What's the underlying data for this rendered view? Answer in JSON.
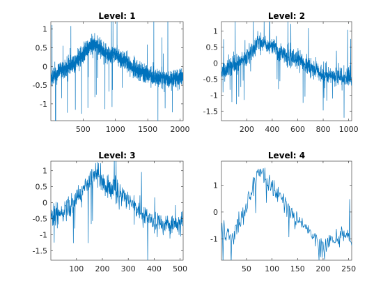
{
  "chart_data": [
    {
      "type": "line",
      "title": "Level: 1",
      "xlim": [
        1,
        2048
      ],
      "ylim": [
        -1.45,
        1.2
      ],
      "xticks": [
        500,
        1000,
        1500,
        2000
      ],
      "yticks": [
        -1,
        -0.5,
        0,
        0.5,
        1
      ],
      "xtick_labels": [
        "500",
        "1000",
        "1500",
        "2000"
      ],
      "ytick_labels": [
        "-1",
        "-0.5",
        "0",
        "0.5",
        "1"
      ],
      "n": 2048,
      "shape": [
        [
          1,
          -0.35
        ],
        [
          150,
          -0.1
        ],
        [
          350,
          0.05
        ],
        [
          450,
          0.25
        ],
        [
          600,
          0.55
        ],
        [
          700,
          0.6
        ],
        [
          850,
          0.35
        ],
        [
          1000,
          0.3
        ],
        [
          1150,
          0.15
        ],
        [
          1250,
          0.0
        ],
        [
          1400,
          -0.15
        ],
        [
          1600,
          -0.3
        ],
        [
          1800,
          -0.35
        ],
        [
          2048,
          -0.3
        ]
      ],
      "series_color": "#0072BD"
    },
    {
      "type": "line",
      "title": "Level: 2",
      "xlim": [
        1,
        1024
      ],
      "ylim": [
        -1.8,
        1.3
      ],
      "xticks": [
        200,
        400,
        600,
        800,
        1000
      ],
      "yticks": [
        -1.5,
        -1,
        -0.5,
        0,
        0.5,
        1
      ],
      "xtick_labels": [
        "200",
        "400",
        "600",
        "800",
        "1000"
      ],
      "ytick_labels": [
        "-1.5",
        "-1",
        "-0.5",
        "0",
        "0.5",
        "1"
      ],
      "n": 1024,
      "shape": [
        [
          1,
          -0.3
        ],
        [
          100,
          -0.05
        ],
        [
          200,
          0.2
        ],
        [
          300,
          0.65
        ],
        [
          380,
          0.55
        ],
        [
          480,
          0.3
        ],
        [
          600,
          0.1
        ],
        [
          700,
          -0.15
        ],
        [
          800,
          -0.35
        ],
        [
          900,
          -0.4
        ],
        [
          1024,
          -0.45
        ]
      ],
      "series_color": "#0072BD"
    },
    {
      "type": "line",
      "title": "Level: 3",
      "xlim": [
        1,
        512
      ],
      "ylim": [
        -1.8,
        1.3
      ],
      "xticks": [
        100,
        200,
        300,
        400,
        500
      ],
      "yticks": [
        -1.5,
        -1,
        -0.5,
        0,
        0.5,
        1
      ],
      "xtick_labels": [
        "100",
        "200",
        "300",
        "400",
        "500"
      ],
      "ytick_labels": [
        "-1.5",
        "-1",
        "-0.5",
        "0",
        "0.5",
        "1"
      ],
      "n": 512,
      "shape": [
        [
          1,
          -0.4
        ],
        [
          50,
          -0.3
        ],
        [
          100,
          0.1
        ],
        [
          150,
          0.7
        ],
        [
          170,
          1.0
        ],
        [
          200,
          0.6
        ],
        [
          250,
          0.4
        ],
        [
          300,
          0.1
        ],
        [
          350,
          -0.3
        ],
        [
          400,
          -0.6
        ],
        [
          450,
          -0.7
        ],
        [
          512,
          -0.6
        ]
      ],
      "series_color": "#0072BD"
    },
    {
      "type": "line",
      "title": "Level: 4",
      "xlim": [
        1,
        256
      ],
      "ylim": [
        -1.8,
        1.9
      ],
      "xticks": [
        50,
        100,
        150,
        200,
        250
      ],
      "yticks": [
        -1,
        0,
        1
      ],
      "xtick_labels": [
        "50",
        "100",
        "150",
        "200",
        "250"
      ],
      "ytick_labels": [
        "-1",
        "0",
        "1"
      ],
      "n": 256,
      "shape": [
        [
          1,
          -0.8
        ],
        [
          25,
          -0.9
        ],
        [
          50,
          0.2
        ],
        [
          75,
          1.5
        ],
        [
          100,
          1.0
        ],
        [
          125,
          0.3
        ],
        [
          150,
          -0.3
        ],
        [
          175,
          -0.8
        ],
        [
          200,
          -1.3
        ],
        [
          225,
          -1.0
        ],
        [
          256,
          -0.9
        ]
      ],
      "series_color": "#0072BD"
    }
  ]
}
